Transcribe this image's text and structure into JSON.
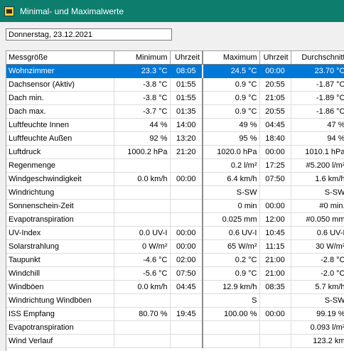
{
  "window": {
    "title": "Minimal- und Maximalwerte",
    "icon": "weather-station-icon"
  },
  "date_field": {
    "value": "Donnerstag, 23.12.2021"
  },
  "table": {
    "headers": [
      "Messgröße",
      "Minimum",
      "Uhrzeit",
      "Maximum",
      "Uhrzeit",
      "Durchschnitt"
    ],
    "selected_row": 0,
    "rows": [
      [
        "Wohnzimmer",
        "23.3 °C",
        "08:05",
        "24.5 °C",
        "00:00",
        "23.70 °C"
      ],
      [
        "Dachsensor (Aktiv)",
        "-3.8 °C",
        "01:55",
        "0.9 °C",
        "20:55",
        "-1.87 °C"
      ],
      [
        "Dach min.",
        "-3.8 °C",
        "01:55",
        "0.9 °C",
        "21:05",
        "-1.89 °C"
      ],
      [
        "Dach max.",
        "-3.7 °C",
        "01:35",
        "0.9 °C",
        "20:55",
        "-1.86 °C"
      ],
      [
        "Luftfeuchte Innen",
        "44 %",
        "14:00",
        "49 %",
        "04:45",
        "47 %"
      ],
      [
        "Luftfeuchte Außen",
        "92 %",
        "13:20",
        "95 %",
        "18:40",
        "94 %"
      ],
      [
        "Luftdruck",
        "1000.2 hPa",
        "21:20",
        "1020.0 hPa",
        "00:00",
        "1010.1 hPa"
      ],
      [
        "Regenmenge",
        "",
        "",
        "0.2 l/m²",
        "17:25",
        "#5.200 l/m²"
      ],
      [
        "Windgeschwindigkeit",
        "0.0 km/h",
        "00:00",
        "6.4 km/h",
        "07:50",
        "1.6 km/h"
      ],
      [
        "Windrichtung",
        "",
        "",
        "S-SW",
        "",
        "S-SW"
      ],
      [
        "Sonnenschein-Zeit",
        "",
        "",
        "0 min",
        "00:00",
        "#0 min."
      ],
      [
        "Evapotranspiration",
        "",
        "",
        "0.025 mm",
        "12:00",
        "#0.050 mm"
      ],
      [
        "UV-Index",
        "0.0 UV-I",
        "00:00",
        "0.6 UV-I",
        "10:45",
        "0.6 UV-I"
      ],
      [
        "Solarstrahlung",
        "0 W/m²",
        "00:00",
        "65 W/m²",
        "11:15",
        "30 W/m²"
      ],
      [
        "Taupunkt",
        "-4.6 °C",
        "02:00",
        "0.2 °C",
        "21:00",
        "-2.8 °C"
      ],
      [
        "Windchill",
        "-5.6 °C",
        "07:50",
        "0.9 °C",
        "21:00",
        "-2.0 °C"
      ],
      [
        "Windböen",
        "0.0 km/h",
        "04:45",
        "12.9 km/h",
        "08:35",
        "5.7 km/h"
      ],
      [
        "Windrichtung Windböen",
        "",
        "",
        "S",
        "",
        "S-SW"
      ],
      [
        "ISS Empfang",
        "80.70 %",
        "19:45",
        "100.00 %",
        "00:00",
        "99.19 %"
      ],
      [
        "Evapotranspiration",
        "",
        "",
        "",
        "",
        "0.093 l/m²"
      ],
      [
        "Wind Verlauf",
        "",
        "",
        "",
        "",
        "123.2 km"
      ]
    ]
  }
}
